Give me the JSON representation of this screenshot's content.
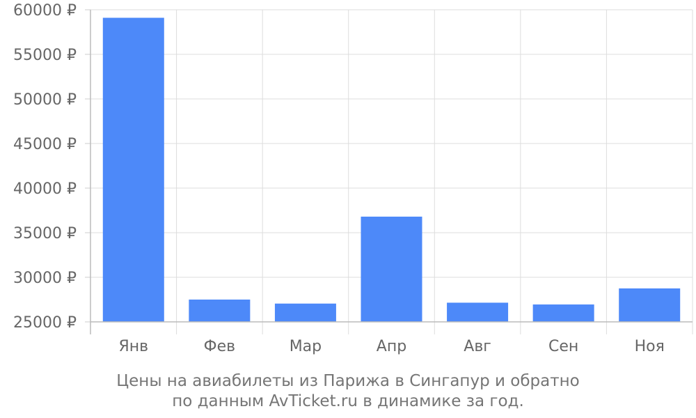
{
  "chart_data": {
    "type": "bar",
    "categories": [
      "Янв",
      "Фев",
      "Мар",
      "Апр",
      "Авг",
      "Сен",
      "Ноя"
    ],
    "values": [
      59100,
      27500,
      27050,
      36800,
      27150,
      26950,
      28750
    ],
    "ylim": [
      25000,
      60000
    ],
    "yticks": [
      25000,
      30000,
      35000,
      40000,
      45000,
      50000,
      55000,
      60000
    ],
    "ytick_suffix": " ₽",
    "grid": true,
    "bar_color": "#4d89f9",
    "caption_line1": "Цены на авиабилеты из Парижа в Сингапур и обратно",
    "caption_line2": "по данным AvTicket.ru в динамике за год."
  }
}
